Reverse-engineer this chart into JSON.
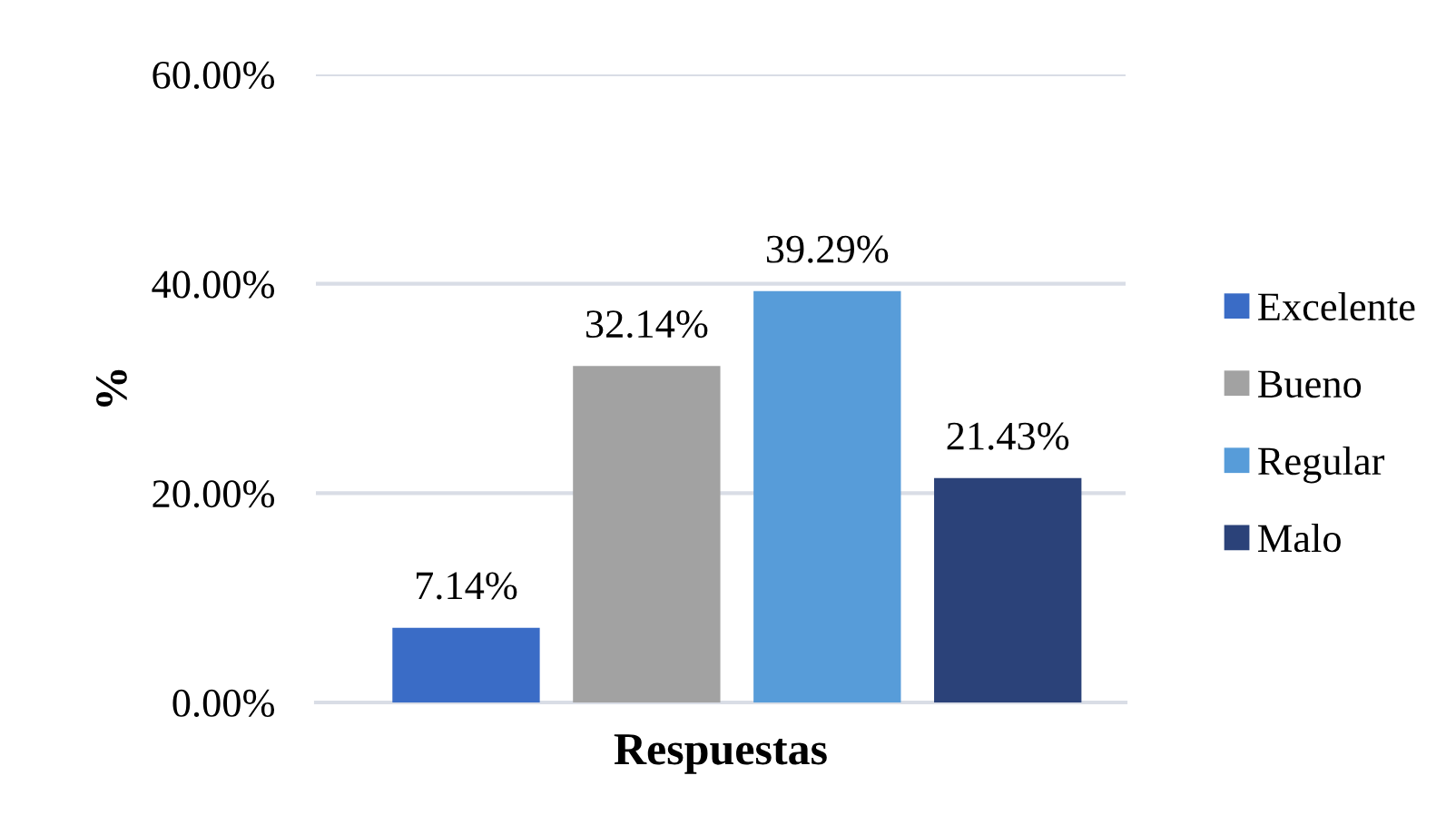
{
  "chart_data": {
    "type": "bar",
    "xlabel": "Respuestas",
    "ylabel": "%",
    "categories": [
      null
    ],
    "series": [
      {
        "name": "Excelente",
        "color": "#3a6cc6",
        "values": [
          7.14
        ],
        "value_labels": [
          "7.14%"
        ]
      },
      {
        "name": "Bueno",
        "color": "#a2a2a2",
        "values": [
          32.14
        ],
        "value_labels": [
          "32.14%"
        ]
      },
      {
        "name": "Regular",
        "color": "#579cd9",
        "values": [
          39.29
        ],
        "value_labels": [
          "39.29%"
        ]
      },
      {
        "name": "Malo",
        "color": "#2b4279",
        "values": [
          21.43
        ],
        "value_labels": [
          "21.43%"
        ]
      }
    ],
    "ylim": [
      0,
      60
    ],
    "yticks": [
      {
        "value": 0,
        "label": "0.00%"
      },
      {
        "value": 20,
        "label": "20.00%"
      },
      {
        "value": 40,
        "label": "40.00%"
      },
      {
        "value": 60,
        "label": "60.00%"
      }
    ],
    "grid": "y",
    "legend": "right",
    "marker": "square"
  }
}
